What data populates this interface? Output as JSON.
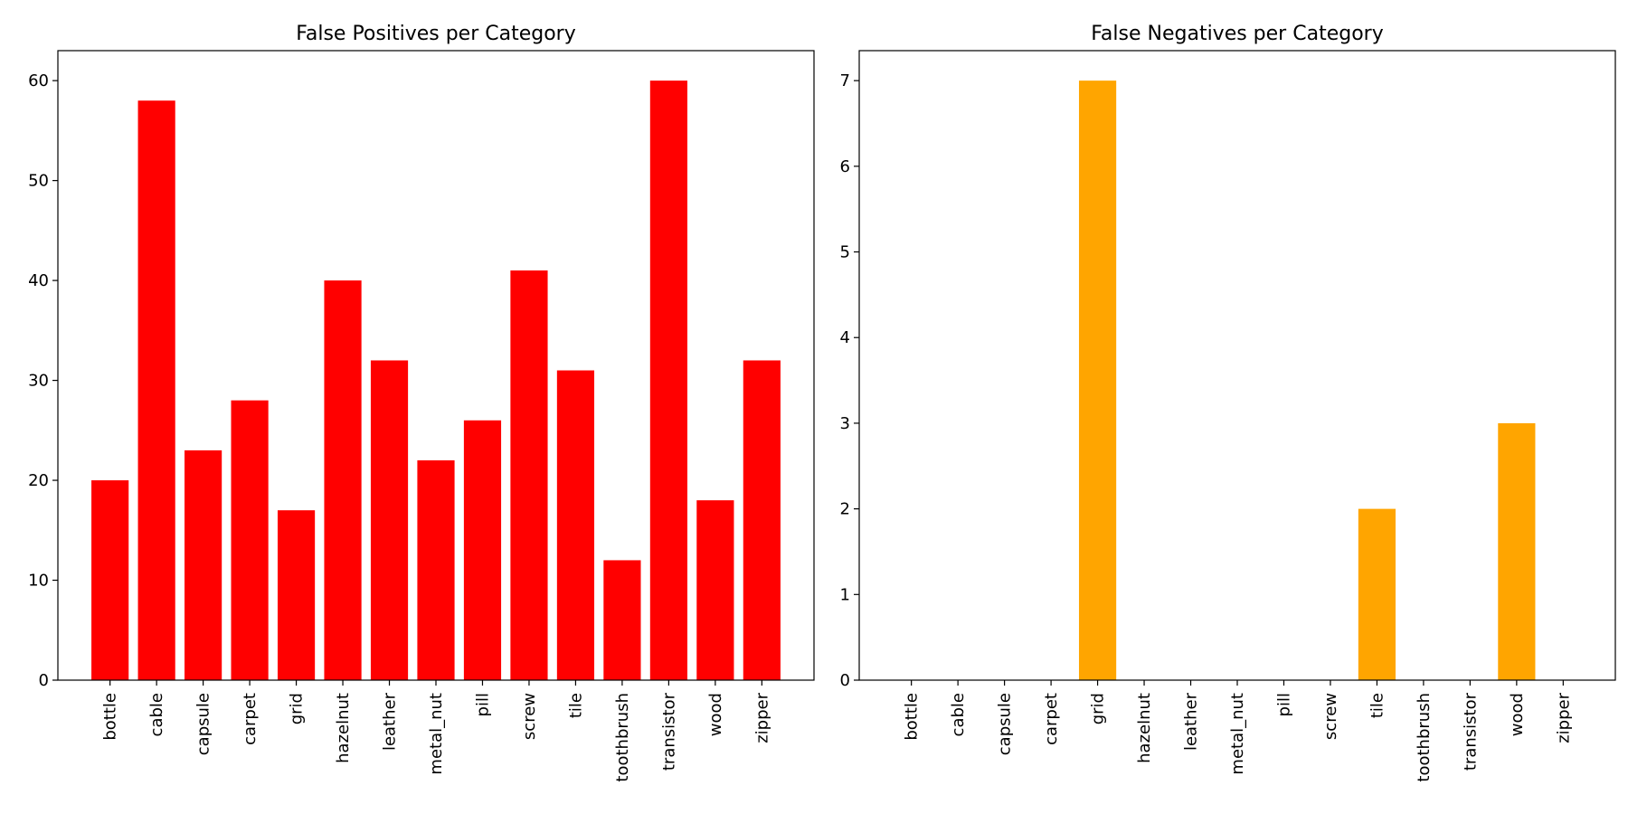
{
  "chart_data": [
    {
      "type": "bar",
      "title": "False Positives per Category",
      "xlabel": "",
      "ylabel": "",
      "categories": [
        "bottle",
        "cable",
        "capsule",
        "carpet",
        "grid",
        "hazelnut",
        "leather",
        "metal_nut",
        "pill",
        "screw",
        "tile",
        "toothbrush",
        "transistor",
        "wood",
        "zipper"
      ],
      "values": [
        20,
        58,
        23,
        28,
        17,
        40,
        32,
        22,
        26,
        41,
        31,
        12,
        60,
        18,
        32
      ],
      "ylim": [
        0,
        63
      ],
      "yticks": [
        0,
        10,
        20,
        30,
        40,
        50,
        60
      ],
      "color": "#ff0000",
      "grid": false,
      "legend": "none"
    },
    {
      "type": "bar",
      "title": "False Negatives per Category",
      "xlabel": "",
      "ylabel": "",
      "categories": [
        "bottle",
        "cable",
        "capsule",
        "carpet",
        "grid",
        "hazelnut",
        "leather",
        "metal_nut",
        "pill",
        "screw",
        "tile",
        "toothbrush",
        "transistor",
        "wood",
        "zipper"
      ],
      "values": [
        0,
        0,
        0,
        0,
        7,
        0,
        0,
        0,
        0,
        0,
        2,
        0,
        0,
        3,
        0
      ],
      "ylim": [
        0,
        7.35
      ],
      "yticks": [
        0,
        1,
        2,
        3,
        4,
        5,
        6,
        7
      ],
      "color": "#ffa500",
      "grid": false,
      "legend": "none"
    }
  ]
}
